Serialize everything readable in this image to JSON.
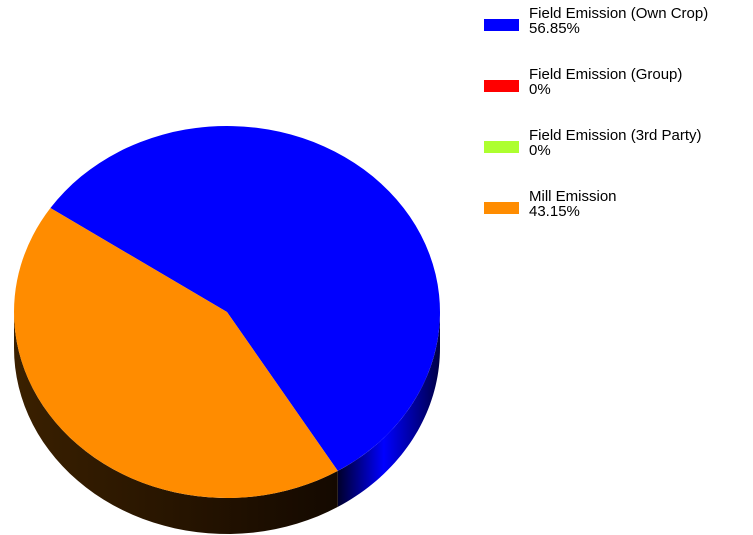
{
  "chart_data": {
    "type": "pie",
    "style": "3d",
    "categories": [
      "Field Emission (Own Crop)",
      "Field Emission (Group)",
      "Field Emission (3rd Party)",
      "Mill Emission"
    ],
    "values": [
      56.85,
      0,
      0,
      43.15
    ],
    "labels": [
      "56.85%",
      "0%",
      "0%",
      "43.15%"
    ],
    "colors": [
      "#0000ff",
      "#ff0000",
      "#adff2f",
      "#ff8c00"
    ],
    "legend": "right"
  }
}
